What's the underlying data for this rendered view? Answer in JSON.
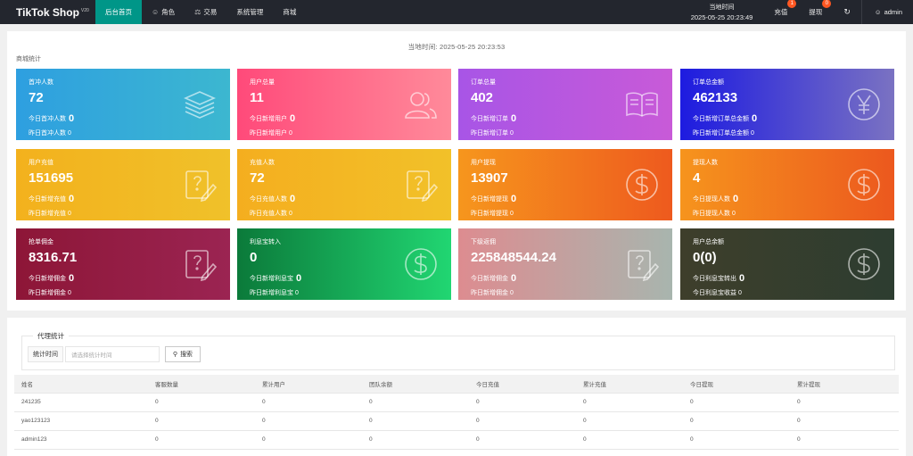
{
  "app": {
    "logo": "TikTok Shop",
    "logo_version": "V20"
  },
  "nav": [
    {
      "label": "后台首页",
      "icon": ""
    },
    {
      "label": "角色",
      "icon": "user-icon"
    },
    {
      "label": "交易",
      "icon": "scale-icon"
    },
    {
      "label": "系统管理",
      "icon": ""
    },
    {
      "label": "商城",
      "icon": ""
    }
  ],
  "header": {
    "time_label": "当地时间",
    "time_value": "2025-05-25 20:23:49",
    "recharge_label": "充值",
    "recharge_count": "1",
    "withdraw_label": "提现",
    "withdraw_count": "0",
    "user": "admin"
  },
  "dashboard": {
    "current_time": "当地时间:  2025-05-25 20:23:53",
    "section_title": "商城统计",
    "cards": [
      {
        "title": "首冲人数",
        "value": "72",
        "today_label": "今日首冲人数",
        "today_value": "0",
        "yesterday": "昨日首冲人数 0",
        "icon": "layers-icon",
        "gradient": "linear-gradient(90deg,#2e9fe0,#3cb7d0)"
      },
      {
        "title": "用户总量",
        "value": "11",
        "today_label": "今日新增用户",
        "today_value": "0",
        "yesterday": "昨日新增用户 0",
        "icon": "users-icon",
        "gradient": "linear-gradient(90deg,#ff4a7a,#ff8a9a)"
      },
      {
        "title": "订单总量",
        "value": "402",
        "today_label": "今日新增订单",
        "today_value": "0",
        "yesterday": "昨日新增订单 0",
        "icon": "book-icon",
        "gradient": "linear-gradient(90deg,#a855e6,#c85ad8)"
      },
      {
        "title": "订单总金额",
        "value": "462133",
        "today_label": "今日新增订单总金额",
        "today_value": "0",
        "yesterday": "昨日新增订单总金额 0",
        "icon": "yen-icon",
        "gradient": "linear-gradient(90deg,#1d1be0,#7a72c2)"
      },
      {
        "title": "用户充值",
        "value": "151695",
        "today_label": "今日新增充值",
        "today_value": "0",
        "yesterday": "昨日新增充值 0",
        "icon": "edit-doc-icon",
        "gradient": "linear-gradient(90deg,#f3b11d,#f0c12a)"
      },
      {
        "title": "充值人数",
        "value": "72",
        "today_label": "今日充值人数",
        "today_value": "0",
        "yesterday": "昨日充值人数 0",
        "icon": "edit-doc-icon",
        "gradient": "linear-gradient(90deg,#f4ae1f,#f2c129)"
      },
      {
        "title": "用户提现",
        "value": "13907",
        "today_label": "今日新增提现",
        "today_value": "0",
        "yesterday": "昨日新增提现 0",
        "icon": "dollar-icon",
        "gradient": "linear-gradient(90deg,#f6961d,#ee5a1e)"
      },
      {
        "title": "提现人数",
        "value": "4",
        "today_label": "今日提现人数",
        "today_value": "0",
        "yesterday": "昨日提现人数 0",
        "icon": "dollar-icon",
        "gradient": "linear-gradient(90deg,#f6941d,#ec581e)"
      },
      {
        "title": "抢单佣金",
        "value": "8316.71",
        "today_label": "今日新增佣金",
        "today_value": "0",
        "yesterday": "昨日新增佣金 0",
        "icon": "edit-doc-icon",
        "gradient": "linear-gradient(90deg,#8d1637,#9b2452)"
      },
      {
        "title": "利息宝转入",
        "value": "0",
        "today_label": "今日新增利息宝",
        "today_value": "0",
        "yesterday": "昨日新增利息宝 0",
        "icon": "dollar-icon",
        "gradient": "linear-gradient(90deg,#0b7a3a,#21d672)"
      },
      {
        "title": "下级返佣",
        "value": "225848544.24",
        "today_label": "今日新增佣金",
        "today_value": "0",
        "yesterday": "昨日新增佣金 0",
        "icon": "edit-doc-icon",
        "gradient": "linear-gradient(90deg,#dd8c90,#a8b5ae)"
      },
      {
        "title": "用户总余额",
        "value": "0(0)",
        "today_label": "今日利息宝转出",
        "today_value": "0",
        "yesterday": "今日利息宝收益 0",
        "icon": "dollar-icon",
        "gradient": "linear-gradient(90deg,#3e3e2b,#2d3d30)"
      }
    ]
  },
  "agent": {
    "legend": "代理统计",
    "time_label": "统计时间",
    "time_placeholder": "请选择统计时间",
    "search_label": "搜索",
    "columns": [
      "姓名",
      "客服数量",
      "累计用户",
      "团队余额",
      "今日充值",
      "累计充值",
      "今日提现",
      "累计提现"
    ],
    "rows": [
      [
        "241235",
        "0",
        "0",
        "0",
        "0",
        "0",
        "0",
        "0"
      ],
      [
        "yao123123",
        "0",
        "0",
        "0",
        "0",
        "0",
        "0",
        "0"
      ],
      [
        "admin123",
        "0",
        "0",
        "0",
        "0",
        "0",
        "0",
        "0"
      ]
    ]
  }
}
